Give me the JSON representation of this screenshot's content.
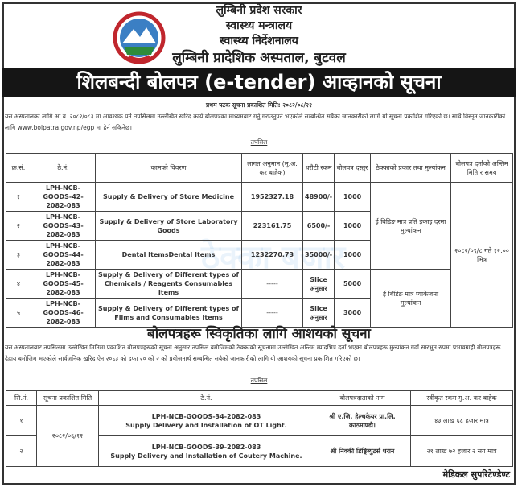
{
  "header": {
    "line1": "लुम्बिनी प्रदेश सरकार",
    "line2": "स्वास्थ्य मन्त्रालय",
    "line3": "स्वास्थ्य निर्देशनालय",
    "line4": "लुम्बिनी प्रादेशिक अस्पताल, बुटवल"
  },
  "title": "शिलबन्दी बोलपत्र (e-tender) आव्हानको सूचना",
  "publish_date": "प्रथम पटक सूचना प्रकाशित मिति: २०८२/०८/२२",
  "intro": "यस अस्पतालको लागि आ.व. २०८२/०८३ मा आवश्यक पर्ने तपसिलमा उल्लेखित खरिद कार्य बोलपत्रका माध्यमबाट गर्नु गराउनुपर्ने भएकोले सम्बन्धित सबैको जानकारीको लागि यो सूचना प्रकाशित गरिएको छ। साथै विस्तृत जानकारीको लागि www.bolpatra.gov.np/egp मा हेर्न सकिनेछ।",
  "tapsil": "तपसिल",
  "table1": {
    "headers": [
      "क्र.सं.",
      "ठे.नं.",
      "कामको विवरण",
      "लागत अनुमान (मु.अ. कर बाहेक)",
      "धरौटी रकम",
      "बोलपत्र दस्तुर",
      "ठेक्काको प्रकार तथा मुल्यांकन",
      "बोलपत्र दर्ताको अन्तिम मिति र समय"
    ],
    "rows": [
      [
        "१",
        "LPH-NCB-GOODS-42-2082-083",
        "Supply & Delivery of Store Medicine",
        "1952327.18",
        "48900/-",
        "1000"
      ],
      [
        "२",
        "LPH-NCB-GOODS-43-2082-083",
        "Supply & Delivery of Store Laboratory Goods",
        "223161.75",
        "6500/-",
        "1000"
      ],
      [
        "३",
        "LPH-NCB-GOODS-44-2082-083",
        "Dental ItemsDental Items",
        "1232270.73",
        "35000/-",
        "1000"
      ],
      [
        "४",
        "LPH-NCB-GOODS-45-2082-083",
        "Supply & Delivery of Different types of Chemicals / Reagents Consumables Items",
        "-----",
        "Slice अनुसार",
        "5000"
      ],
      [
        "५",
        "LPH-NCB-GOODS-46-2082-083",
        "Supply & Delivery of Different types of Films and Consumables Items",
        "-----",
        "Slice अनुसार",
        "3000"
      ]
    ],
    "type_a": "ई बिडिङ मात्र प्रति इकाइ दरमा मुल्यांकन",
    "type_b": "ई बिडिङ मात्र प्याकेजमा मुल्यांकन",
    "deadline": "२०८२/०९/८ गते १२.०० भित्र"
  },
  "section2": {
    "title": "बोलपत्रहरू स्विकृतिका लागि आशयको सूचना",
    "text": "यस अस्पतालबाट तपसिलमा उल्लेखित मितिमा प्रकाशित बोलपत्रहरूको सूचना अनुसार तपसिल बमोजिमको ठेक्काको सूचनामा उल्लेखित अन्तिम म्यादभित्र दर्ता भएका बोलपत्रहरू मुल्यांकन गर्दा सारभुत रुपमा प्रभावग्राही बोलपत्रहरू देहाय बमोजिम भएकोले सार्वजनिक खरिद ऐन २०६३ को दफा २० को २ को प्रयोजनार्थ सम्बन्धित सबैको जानकारीको लागि यो आशयको सूचना प्रकाशित गरिएको छ।",
    "tapsil": "तपसिल",
    "headers": [
      "सि.नं.",
      "सूचना प्रकाशित मिति",
      "ठे.नं.",
      "बोलपत्रदाताको नाम",
      "स्वीकृत रकम मु.अ. कर बाहेक"
    ],
    "date": "२०८२/०६/१२",
    "rows": [
      [
        "१",
        "LPH-NCB-GOODS-34-2082-083",
        "Supply Delivery and Installation of OT Light.",
        "श्री ए.जि. हेल्थकेयर प्रा.लि. काठमाण्डौ।",
        "४३ लाख ६८ हजार मात्र"
      ],
      [
        "२",
        "LPH-NCB-GOODS-39-2082-083",
        "Supply Delivery and Installation of Coutery Machine.",
        "श्री निक्की डिष्ट्रिब्युटर्स धरान",
        "२१ लाख ७२ हजार २ सय मात्र"
      ]
    ]
  },
  "footer": "मेडिकल सुपरिटेण्डेण्ट",
  "watermark": "ठेक्का बजार"
}
